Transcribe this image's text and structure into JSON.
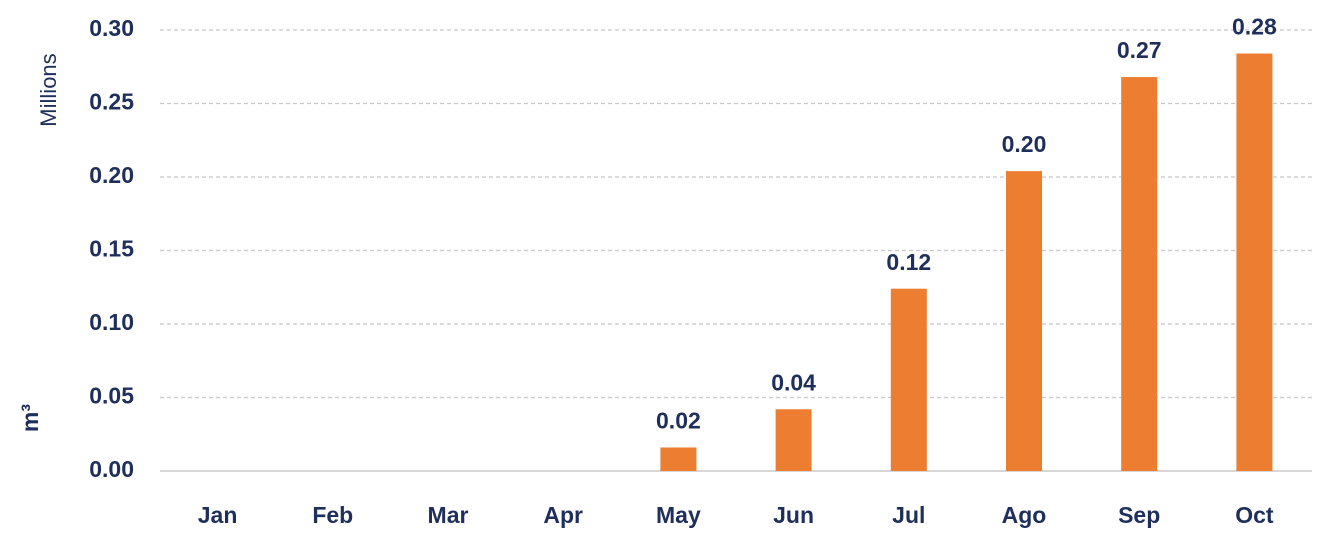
{
  "chart_data": {
    "type": "bar",
    "y_axis_label": "m³",
    "y_axis_unit": "Millions",
    "categories": [
      "Jan",
      "Feb",
      "Mar",
      "Apr",
      "May",
      "Jun",
      "Jul",
      "Ago",
      "Sep",
      "Oct"
    ],
    "values": [
      null,
      null,
      null,
      null,
      0.016,
      0.042,
      0.124,
      0.204,
      0.268,
      0.284
    ],
    "value_labels": [
      null,
      null,
      null,
      null,
      "0.02",
      "0.04",
      "0.12",
      "0.20",
      "0.27",
      "0.28"
    ],
    "color": "#ed7d31",
    "ylim": [
      0,
      0.3
    ],
    "yticks": [
      {
        "value": 0,
        "label": "0.00"
      },
      {
        "value": 0.05,
        "label": "0.05"
      },
      {
        "value": 0.1,
        "label": "0.10"
      },
      {
        "value": 0.15,
        "label": "0.15"
      },
      {
        "value": 0.2,
        "label": "0.20"
      },
      {
        "value": 0.25,
        "label": "0.25"
      },
      {
        "value": 0.3,
        "label": "0.30"
      }
    ],
    "grid": true
  }
}
